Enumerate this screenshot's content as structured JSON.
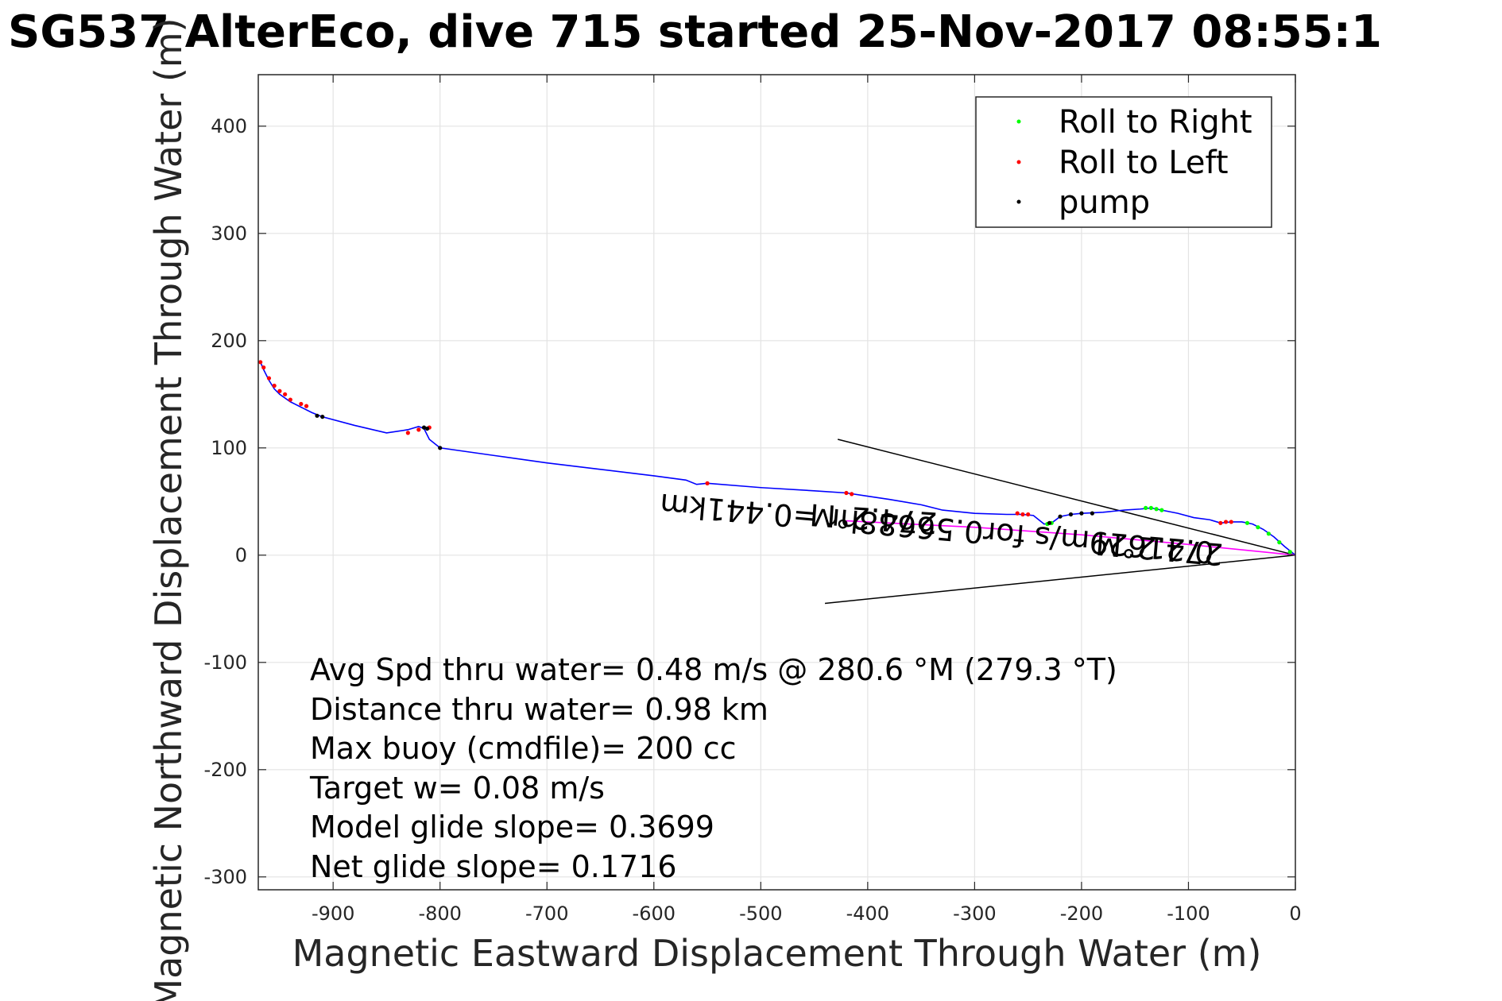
{
  "chart_data": {
    "type": "line",
    "title": "SG537 AlterEco, dive 715 started 25-Nov-2017 08:55:1",
    "xlabel": "Magnetic Eastward Displacement Through Water (m)",
    "ylabel": "Magnetic Northward Displacement Through Water (m)",
    "xlim": [
      -970,
      0
    ],
    "ylim": [
      -312,
      448
    ],
    "xticks": [
      -900,
      -800,
      -700,
      -600,
      -500,
      -400,
      -300,
      -200,
      -100,
      0
    ],
    "yticks": [
      -300,
      -200,
      -100,
      0,
      100,
      200,
      300,
      400
    ],
    "grid": true,
    "legend_position": "top-right",
    "legend": [
      {
        "label": "Roll to Right",
        "color": "#00ff00"
      },
      {
        "label": "Roll to Left",
        "color": "#ff0000"
      },
      {
        "label": "pump",
        "color": "#000000"
      }
    ],
    "series": [
      {
        "name": "",
        "color": "#0000ff",
        "x": [
          0,
          -10,
          -20,
          -30,
          -40,
          -50,
          -60,
          -70,
          -80,
          -95,
          -110,
          -125,
          -135,
          -145,
          -160,
          -180,
          -200,
          -210,
          -220,
          -228,
          -235,
          -245,
          -255,
          -270,
          -300,
          -330,
          -350,
          -380,
          -400,
          -420,
          -450,
          -500,
          -550,
          -560,
          -570,
          -600,
          -650,
          -700,
          -750,
          -800,
          -810,
          -815,
          -820,
          -830,
          -850,
          -880,
          -910,
          -915,
          -920,
          -930,
          -940,
          -950,
          -955,
          -960,
          -965,
          -968
        ],
        "y": [
          0,
          8,
          17,
          24,
          29,
          31,
          31,
          30,
          33,
          35,
          39,
          42,
          44,
          43,
          42,
          40,
          39,
          38,
          36,
          30,
          29,
          37,
          38,
          38,
          39,
          42,
          47,
          52,
          55,
          58,
          60,
          63,
          67,
          66,
          70,
          74,
          80,
          86,
          93,
          100,
          108,
          118,
          120,
          117,
          114,
          121,
          129,
          131,
          133,
          138,
          143,
          150,
          155,
          163,
          173,
          180
        ]
      },
      {
        "name": "",
        "color": "#ff00ff",
        "x": [
          0,
          -100,
          -200,
          -300,
          -400,
          -420
        ],
        "y": [
          0,
          10,
          19,
          26,
          31,
          32
        ]
      }
    ],
    "markers": {
      "roll_right": {
        "x": [
          -5,
          -15,
          -25,
          -35,
          -45,
          -125,
          -130,
          -135,
          -140,
          -228,
          -232
        ],
        "y": [
          3,
          12,
          20,
          26,
          30,
          42,
          43,
          44,
          44,
          30,
          29
        ]
      },
      "roll_left": {
        "x": [
          -60,
          -65,
          -70,
          -250,
          -255,
          -260,
          -415,
          -420,
          -550,
          -810,
          -820,
          -830,
          -925,
          -930,
          -940,
          -945,
          -950,
          -955,
          -960,
          -965,
          -968
        ],
        "y": [
          31,
          31,
          30,
          38,
          38,
          39,
          57,
          58,
          67,
          119,
          117,
          114,
          139,
          141,
          145,
          150,
          153,
          158,
          165,
          175,
          180
        ]
      },
      "pump": {
        "x": [
          -190,
          -200,
          -210,
          -220,
          -230,
          -800,
          -812,
          -815,
          -910,
          -915
        ],
        "y": [
          39,
          39,
          38,
          36,
          30,
          100,
          118,
          119,
          129,
          130
        ]
      }
    },
    "reference_lines": [
      {
        "x": [
          0,
          -428
        ],
        "y": [
          0,
          108
        ]
      },
      {
        "x": [
          0,
          -440
        ],
        "y": [
          0,
          -45
        ]
      }
    ],
    "annotations": [
      "Avg Spd thru water=  0.48 m/s @ 280.6 °M (279.3 °T)",
      "Distance thru water=  0.98 km",
      "Max buoy (cmdfile)= 200 cc",
      "Target w= 0.08 m/s",
      "Model glide slope= 0.3699",
      "Net glide slope= 0.1716"
    ],
    "rotated_annotations": [
      "274.2°M",
      "0.21629m/s for0.56688hr =0.441km",
      "274.2°M"
    ]
  }
}
